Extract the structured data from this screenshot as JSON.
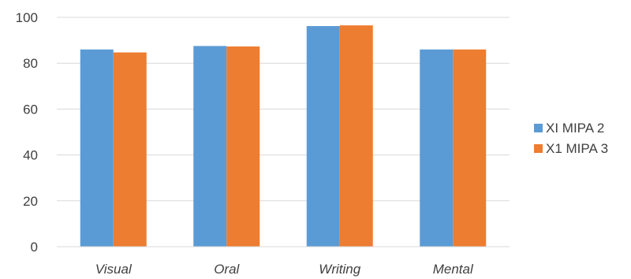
{
  "chart_data": {
    "type": "bar",
    "categories": [
      "Visual",
      "Oral",
      "Writing",
      "Mental"
    ],
    "series": [
      {
        "name": "XI MIPA 2",
        "color": "#5b9bd5",
        "values": [
          86,
          87.5,
          96.2,
          86
        ]
      },
      {
        "name": "X1 MIPA 3",
        "color": "#ed7d31",
        "values": [
          84.7,
          87.3,
          96.5,
          86
        ]
      }
    ],
    "ylim": [
      0,
      100
    ],
    "yticks": [
      0,
      20,
      40,
      60,
      80,
      100
    ],
    "grid": true,
    "legend_position": "right"
  }
}
